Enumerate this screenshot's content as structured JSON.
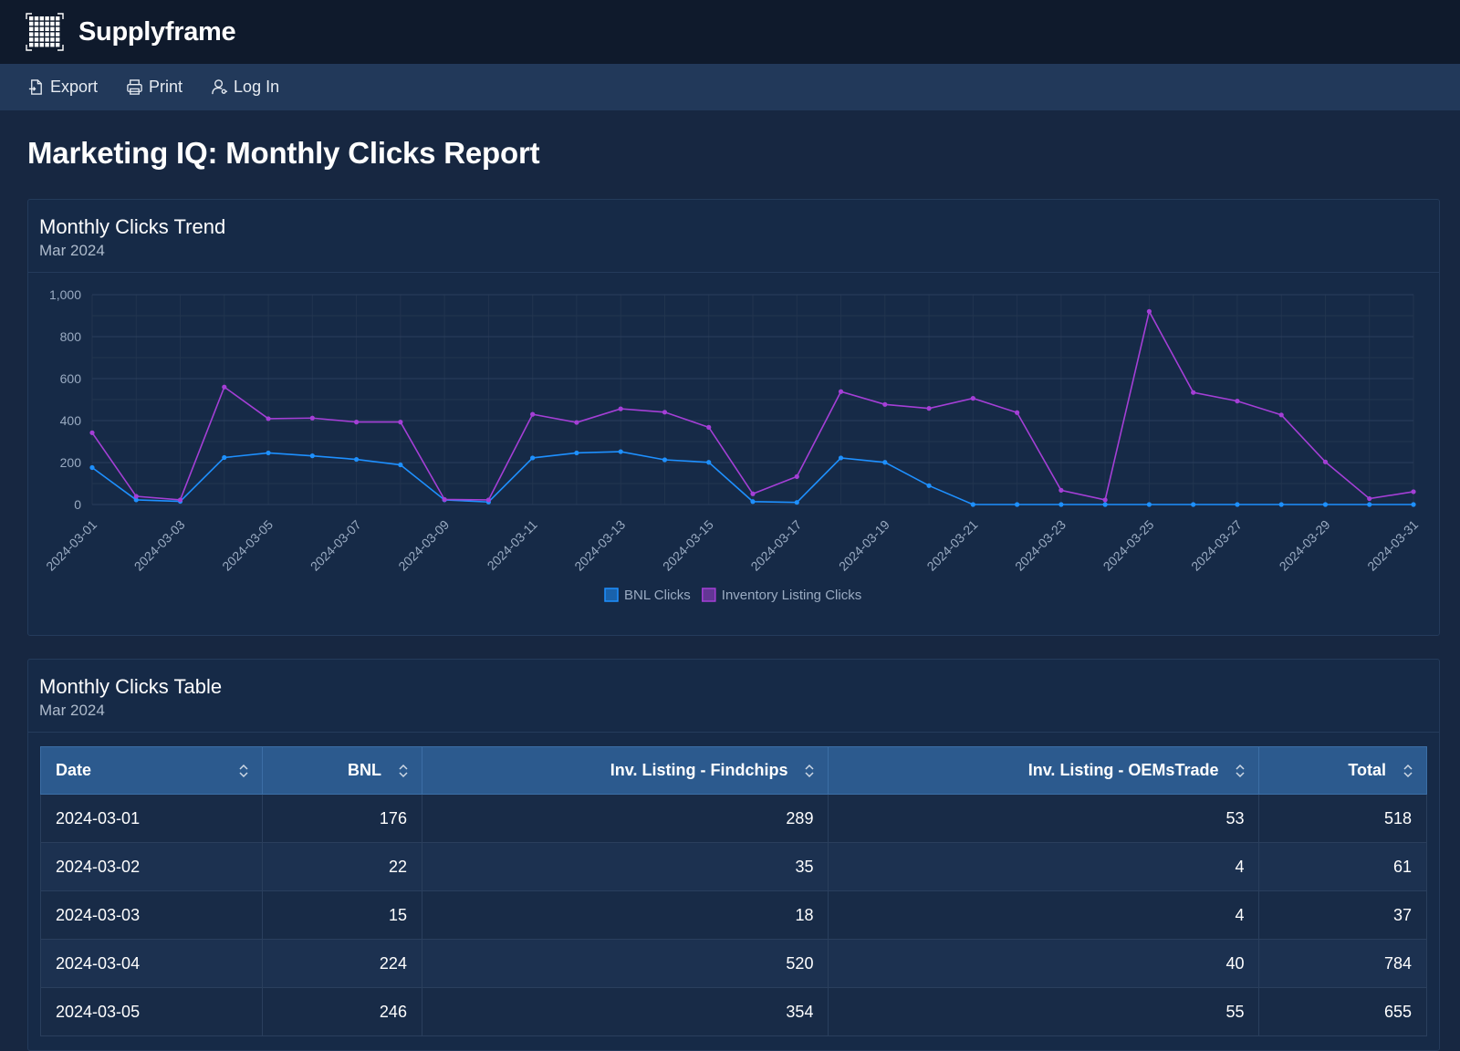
{
  "app": {
    "brand": "Supplyframe"
  },
  "toolbar": {
    "export_label": "Export",
    "print_label": "Print",
    "login_label": "Log In"
  },
  "page": {
    "title": "Marketing IQ: Monthly Clicks Report"
  },
  "chart_card": {
    "title": "Monthly Clicks Trend",
    "subtitle": "Mar 2024"
  },
  "table_card": {
    "title": "Monthly Clicks Table",
    "subtitle": "Mar 2024",
    "columns": [
      "Date",
      "BNL",
      "Inv. Listing - Findchips",
      "Inv. Listing - OEMsTrade",
      "Total"
    ],
    "rows": [
      [
        "2024-03-01",
        "176",
        "289",
        "53",
        "518"
      ],
      [
        "2024-03-02",
        "22",
        "35",
        "4",
        "61"
      ],
      [
        "2024-03-03",
        "15",
        "18",
        "4",
        "37"
      ],
      [
        "2024-03-04",
        "224",
        "520",
        "40",
        "784"
      ],
      [
        "2024-03-05",
        "246",
        "354",
        "55",
        "655"
      ]
    ]
  },
  "colors": {
    "bnl": "#1e90ff",
    "inventory": "#a43fd6"
  },
  "chart_data": {
    "type": "line",
    "title": "",
    "xlabel": "",
    "ylabel": "",
    "ylim": [
      0,
      1000
    ],
    "yticks": [
      "0",
      "200",
      "400",
      "600",
      "800",
      "1,000"
    ],
    "x": [
      "2024-03-01",
      "2024-03-02",
      "2024-03-03",
      "2024-03-04",
      "2024-03-05",
      "2024-03-06",
      "2024-03-07",
      "2024-03-08",
      "2024-03-09",
      "2024-03-10",
      "2024-03-11",
      "2024-03-12",
      "2024-03-13",
      "2024-03-14",
      "2024-03-15",
      "2024-03-16",
      "2024-03-17",
      "2024-03-18",
      "2024-03-19",
      "2024-03-20",
      "2024-03-21",
      "2024-03-22",
      "2024-03-23",
      "2024-03-24",
      "2024-03-25",
      "2024-03-26",
      "2024-03-27",
      "2024-03-28",
      "2024-03-29",
      "2024-03-30",
      "2024-03-31"
    ],
    "xtick_labels": [
      "2024-03-01",
      "2024-03-03",
      "2024-03-05",
      "2024-03-07",
      "2024-03-09",
      "2024-03-11",
      "2024-03-13",
      "2024-03-15",
      "2024-03-17",
      "2024-03-19",
      "2024-03-21",
      "2024-03-23",
      "2024-03-25",
      "2024-03-27",
      "2024-03-29",
      "2024-03-31"
    ],
    "grid": true,
    "legend": "bottom-center",
    "series": [
      {
        "name": "BNL Clicks",
        "color": "#1e90ff",
        "values": [
          176,
          22,
          15,
          224,
          246,
          232,
          215,
          189,
          22,
          12,
          222,
          246,
          252,
          213,
          201,
          14,
          10,
          222,
          201,
          90,
          0,
          0,
          0,
          0,
          0,
          0,
          0,
          0,
          0,
          0,
          0
        ]
      },
      {
        "name": "Inventory Listing Clicks",
        "color": "#a43fd6",
        "values": [
          342,
          39,
          22,
          560,
          409,
          412,
          393,
          393,
          24,
          22,
          430,
          391,
          456,
          440,
          368,
          51,
          133,
          538,
          477,
          458,
          506,
          438,
          68,
          22,
          920,
          534,
          493,
          427,
          203,
          28,
          61
        ]
      }
    ]
  }
}
